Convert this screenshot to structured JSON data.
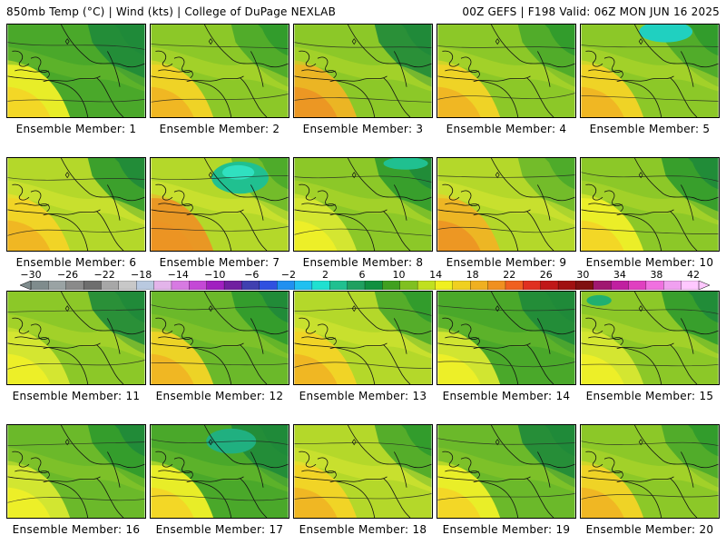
{
  "header": {
    "left": "850mb Temp (°C) | Wind (kts) | College of DuPage NEXLAB",
    "right": "00Z GEFS | F198 Valid: 06Z MON JUN 16 2025"
  },
  "colorbar": {
    "labels": [
      "−30",
      "−26",
      "−22",
      "−18",
      "−14",
      "−10",
      "−6",
      "−2",
      "2",
      "6",
      "10",
      "14",
      "18",
      "22",
      "26",
      "30",
      "34",
      "38",
      "42"
    ],
    "colors": [
      "#7f8c8d",
      "#9aa3a4",
      "#8a8a8a",
      "#6e6e6e",
      "#a7a7a7",
      "#c8c8c8",
      "#b9c9e0",
      "#e3b4ea",
      "#d77ae2",
      "#c448d6",
      "#a020c0",
      "#7020a0",
      "#4040b0",
      "#3050e0",
      "#2090f0",
      "#20c0f0",
      "#20e0d0",
      "#20c090",
      "#20a060",
      "#109040",
      "#40a020",
      "#80c020",
      "#c0e020",
      "#f0f020",
      "#f0d020",
      "#f0b020",
      "#f09020",
      "#f06020",
      "#e03020",
      "#c01818",
      "#a01010",
      "#801010",
      "#a01870",
      "#c020a0",
      "#e040c0",
      "#f070e0",
      "#f0a0f0",
      "#ffc8ff"
    ]
  },
  "members": [
    {
      "label": "Ensemble Member: 1"
    },
    {
      "label": "Ensemble Member: 2"
    },
    {
      "label": "Ensemble Member: 3"
    },
    {
      "label": "Ensemble Member: 4"
    },
    {
      "label": "Ensemble Member: 5"
    },
    {
      "label": "Ensemble Member: 6"
    },
    {
      "label": "Ensemble Member: 7"
    },
    {
      "label": "Ensemble Member: 8"
    },
    {
      "label": "Ensemble Member: 9"
    },
    {
      "label": "Ensemble Member: 10"
    },
    {
      "label": "Ensemble Member: 11"
    },
    {
      "label": "Ensemble Member: 12"
    },
    {
      "label": "Ensemble Member: 13"
    },
    {
      "label": "Ensemble Member: 14"
    },
    {
      "label": "Ensemble Member: 15"
    },
    {
      "label": "Ensemble Member: 16"
    },
    {
      "label": "Ensemble Member: 17"
    },
    {
      "label": "Ensemble Member: 18"
    },
    {
      "label": "Ensemble Member: 19"
    },
    {
      "label": "Ensemble Member: 20"
    }
  ]
}
